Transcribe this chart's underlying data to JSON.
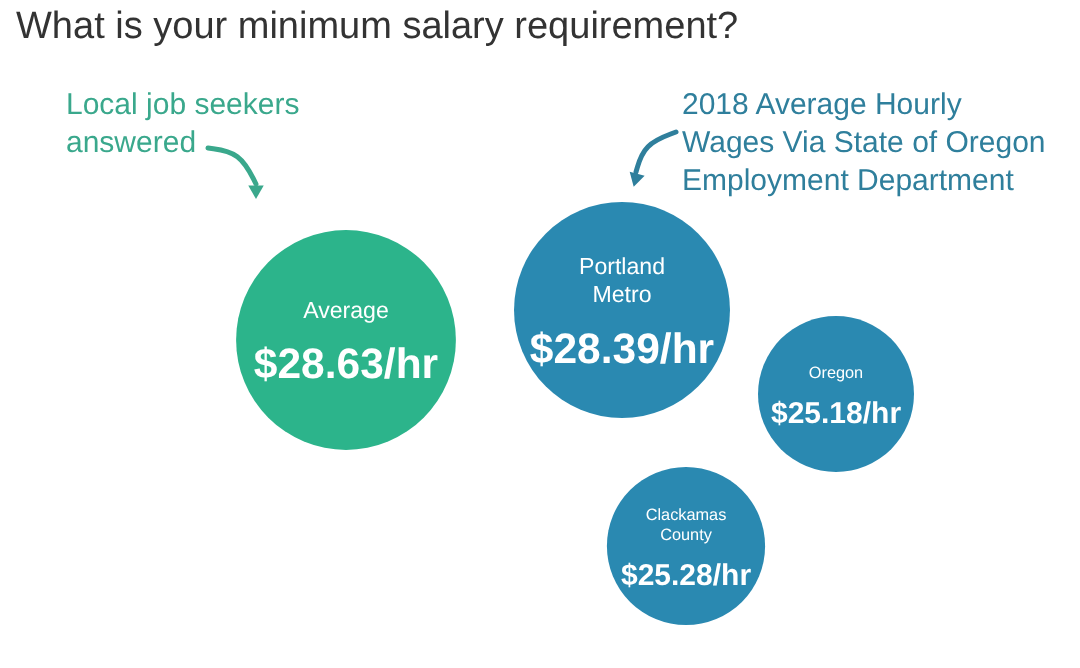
{
  "chart_data": {
    "type": "other",
    "title": "What is your minimum salary requirement?",
    "categories": [
      "Average",
      "Portland Metro",
      "Oregon",
      "Clackamas County"
    ],
    "values": [
      28.63,
      28.39,
      25.18,
      25.28
    ],
    "value_labels": [
      "$28.63/hr",
      "$28.39/hr",
      "$25.18/hr",
      "$25.28/hr"
    ],
    "colors": [
      "#2cb48b",
      "#2a89b1",
      "#2a89b1",
      "#2a89b1"
    ],
    "annotations": [
      "Local job seekers answered",
      "2018 Average Hourly Wages Via State of Oregon Employment Department"
    ]
  }
}
